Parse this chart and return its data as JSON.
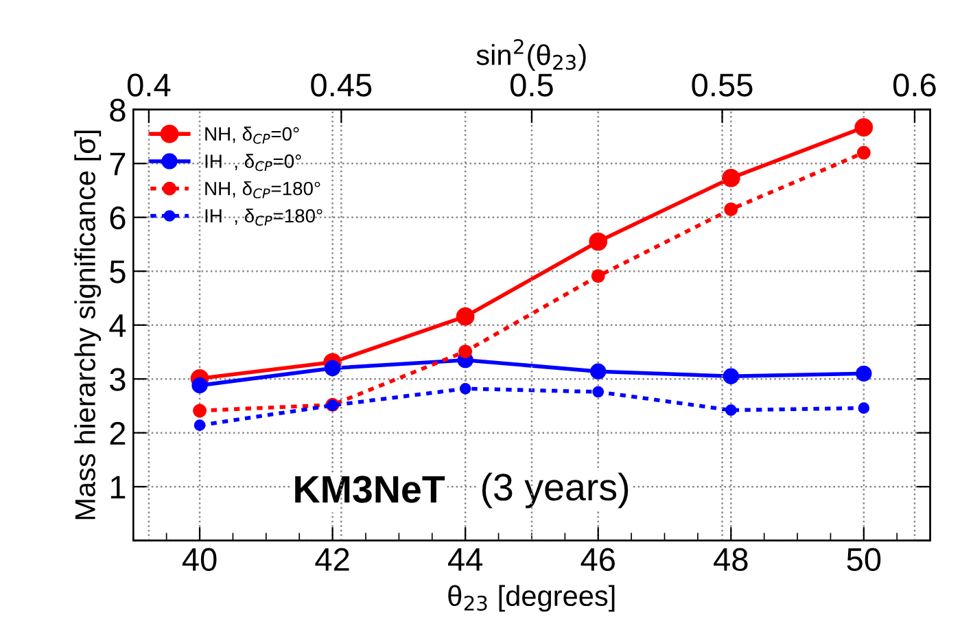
{
  "chart_data": {
    "type": "line",
    "xlabel": "θ$_{23}$ [degrees]",
    "ylabel": "Mass hierarchy significance [σ]",
    "x2label": "sin$^{2}$(θ$_{23}$)",
    "x": [
      40,
      42,
      44,
      46,
      48,
      50
    ],
    "series": [
      {
        "name": "NH, δ$_{CP}$=0°",
        "color": "#ff0000",
        "line_style": "solid",
        "values": [
          3.01,
          3.31,
          4.16,
          5.55,
          6.73,
          7.67
        ]
      },
      {
        "name": "IH  , δ$_{CP}$=0°",
        "color": "#0000ff",
        "line_style": "solid",
        "values": [
          2.88,
          3.2,
          3.35,
          3.14,
          3.05,
          3.1
        ]
      },
      {
        "name": "NH, δ$_{CP}$=180°",
        "color": "#ff0000",
        "line_style": "dotted",
        "values": [
          2.41,
          2.52,
          3.51,
          4.91,
          6.15,
          7.2
        ]
      },
      {
        "name": "IH  , δ$_{CP}$=180°",
        "color": "#0000ff",
        "line_style": "dotted",
        "values": [
          2.14,
          2.51,
          2.82,
          2.76,
          2.42,
          2.46
        ]
      }
    ],
    "xlim": [
      39,
      51
    ],
    "xticks": [
      40,
      42,
      44,
      46,
      48,
      50
    ],
    "ylim": [
      0,
      8
    ],
    "yticks": [
      {
        "value": 0,
        "label": null
      },
      1,
      2,
      3,
      4,
      5,
      6,
      7,
      8
    ],
    "x2lim": [
      0.396,
      0.604
    ],
    "x2ticks": [
      0.4,
      0.45,
      0.5,
      0.55,
      0.6
    ],
    "annotations": [
      "KM3NeT",
      "(3 years)"
    ],
    "grid": true,
    "legend": "top left",
    "marker": "circle"
  }
}
